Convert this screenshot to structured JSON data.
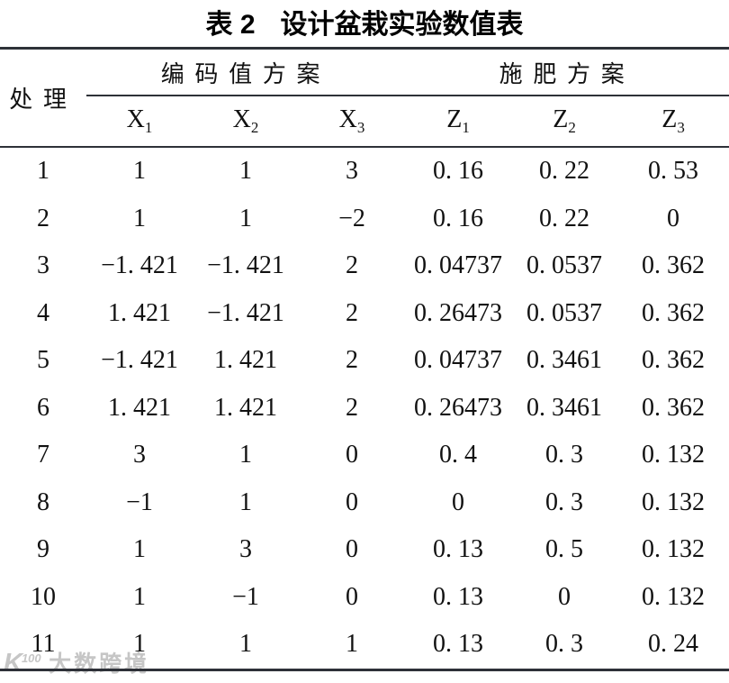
{
  "title": {
    "prefix": "表 2",
    "text": "设计盆栽实验数值表"
  },
  "table": {
    "corner_header": "处理",
    "group_headers": [
      {
        "label": "编码值方案"
      },
      {
        "label": "施肥方案"
      }
    ],
    "sub_headers": [
      {
        "base": "X",
        "sub": "1"
      },
      {
        "base": "X",
        "sub": "2"
      },
      {
        "base": "X",
        "sub": "3"
      },
      {
        "base": "Z",
        "sub": "1"
      },
      {
        "base": "Z",
        "sub": "2"
      },
      {
        "base": "Z",
        "sub": "3"
      }
    ],
    "rows": [
      [
        "1",
        "1",
        "1",
        "3",
        "0. 16",
        "0. 22",
        "0. 53"
      ],
      [
        "2",
        "1",
        "1",
        "−2",
        "0. 16",
        "0. 22",
        "0"
      ],
      [
        "3",
        "−1. 421",
        "−1. 421",
        "2",
        "0. 04737",
        "0. 0537",
        "0. 362"
      ],
      [
        "4",
        "1. 421",
        "−1. 421",
        "2",
        "0. 26473",
        "0. 0537",
        "0. 362"
      ],
      [
        "5",
        "−1. 421",
        "1. 421",
        "2",
        "0. 04737",
        "0. 3461",
        "0. 362"
      ],
      [
        "6",
        "1. 421",
        "1. 421",
        "2",
        "0. 26473",
        "0. 3461",
        "0. 362"
      ],
      [
        "7",
        "3",
        "1",
        "0",
        "0. 4",
        "0. 3",
        "0. 132"
      ],
      [
        "8",
        "−1",
        "1",
        "0",
        "0",
        "0. 3",
        "0. 132"
      ],
      [
        "9",
        "1",
        "3",
        "0",
        "0. 13",
        "0. 5",
        "0. 132"
      ],
      [
        "10",
        "1",
        "−1",
        "0",
        "0. 13",
        "0",
        "0. 132"
      ],
      [
        "11",
        "1",
        "1",
        "1",
        "0. 13",
        "0. 3",
        "0. 24"
      ]
    ]
  },
  "watermark": {
    "logo_main": "K",
    "logo_sup": "100",
    "text": "大数跨境"
  },
  "colors": {
    "rule": "#2e3138",
    "text": "#111111",
    "watermark": "#c6c6c6",
    "background": "#ffffff"
  }
}
